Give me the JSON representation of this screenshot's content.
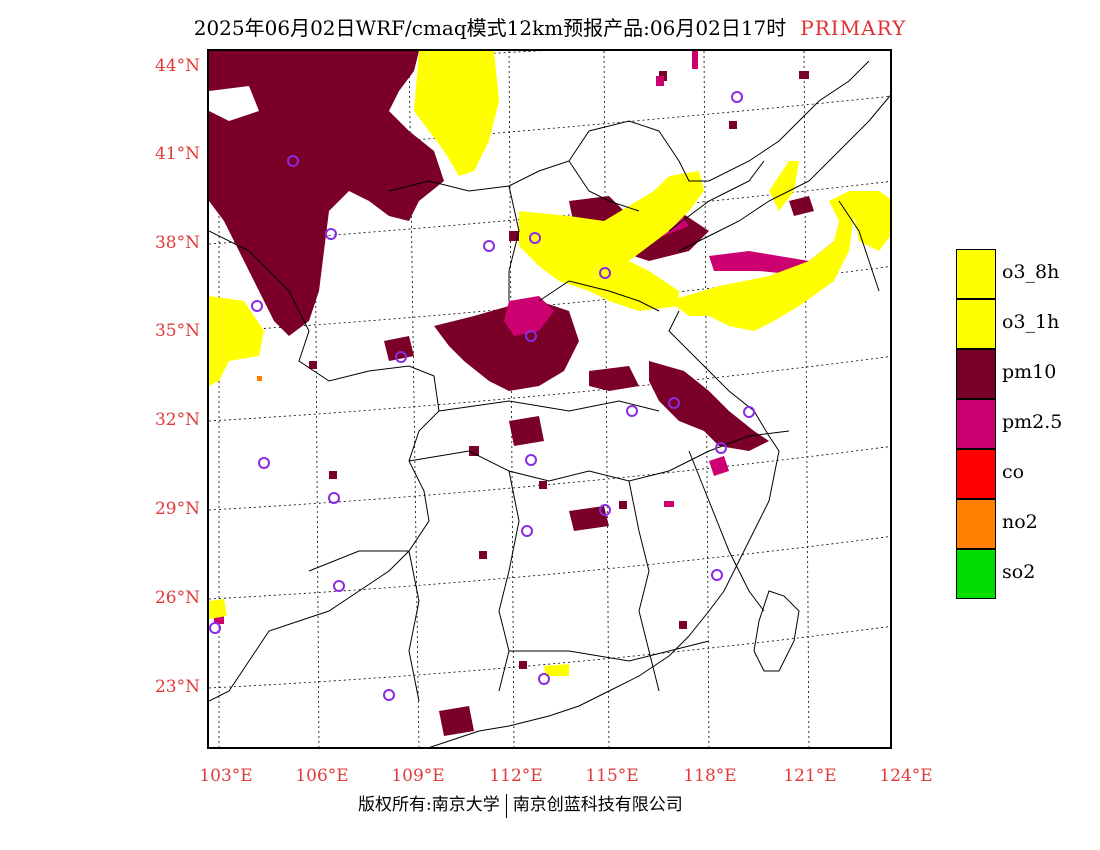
{
  "title": {
    "main": "2025年06月02日WRF/cmaq模式12km预报产品:06月02日17时",
    "tag": "PRIMARY"
  },
  "axes": {
    "lat_labels": [
      "44°N",
      "41°N",
      "38°N",
      "35°N",
      "32°N",
      "29°N",
      "26°N",
      "23°N"
    ],
    "lon_labels": [
      "103°E",
      "106°E",
      "109°E",
      "112°E",
      "115°E",
      "118°E",
      "121°E",
      "124°E"
    ]
  },
  "legend": {
    "items": [
      {
        "label": "o3_8h",
        "color": "#ffff00"
      },
      {
        "label": "o3_1h",
        "color": "#ffff00"
      },
      {
        "label": "pm10",
        "color": "#7a0028"
      },
      {
        "label": "pm2.5",
        "color": "#cc0070"
      },
      {
        "label": "co",
        "color": "#ff0000"
      },
      {
        "label": "no2",
        "color": "#ff7f00"
      },
      {
        "label": "so2",
        "color": "#00dd00"
      }
    ]
  },
  "footer": {
    "left": "版权所有:南京大学",
    "right": "南京创蓝科技有限公司"
  },
  "colors": {
    "axis_label": "#e03a3a",
    "station_marker": "#8a2be2"
  }
}
